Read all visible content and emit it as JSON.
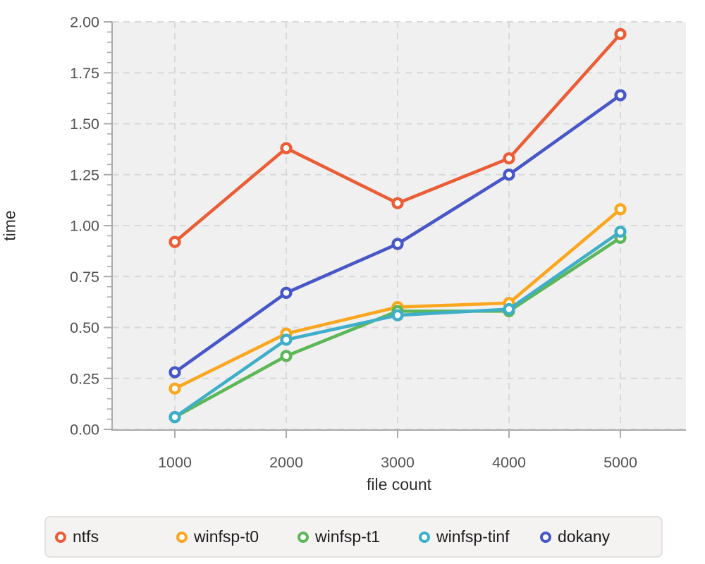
{
  "chart_data": {
    "type": "line",
    "title": "",
    "xlabel": "file count",
    "ylabel": "time",
    "categories": [
      1000,
      2000,
      3000,
      4000,
      5000
    ],
    "x_tick_labels": [
      "1000",
      "2000",
      "3000",
      "4000",
      "5000"
    ],
    "y_ticks": [
      "0.00",
      "0.25",
      "0.50",
      "0.75",
      "1.00",
      "1.25",
      "1.50",
      "1.75",
      "2.00"
    ],
    "ylim": [
      0.0,
      2.0
    ],
    "y_minor_step": 0.05,
    "grid": "dashed",
    "legend_position": "bottom",
    "marker_style": "open-circle",
    "series": [
      {
        "name": "ntfs",
        "color": "#EB5D36",
        "values": [
          0.92,
          1.38,
          1.11,
          1.33,
          1.94
        ]
      },
      {
        "name": "winfsp-t0",
        "color": "#FAA71F",
        "values": [
          0.2,
          0.47,
          0.6,
          0.62,
          1.08
        ]
      },
      {
        "name": "winfsp-t1",
        "color": "#5CB757",
        "values": [
          0.06,
          0.36,
          0.58,
          0.58,
          0.94
        ]
      },
      {
        "name": "winfsp-tinf",
        "color": "#3FAEC9",
        "values": [
          0.06,
          0.44,
          0.56,
          0.59,
          0.97
        ]
      },
      {
        "name": "dokany",
        "color": "#4757C8",
        "values": [
          0.28,
          0.67,
          0.91,
          1.25,
          1.64
        ]
      }
    ]
  },
  "theme": {
    "background": "#FFFFFF",
    "plot_background": "#F1F0F0",
    "grid_color": "#D9D9D9",
    "axis_color": "#ABABAB",
    "tick_label_color": "#535353",
    "axis_title_color": "#2C2C2C",
    "legend_background": "#F4F3F2",
    "legend_border": "#E3E1E0",
    "legend_text_color": "#1C1C1E"
  }
}
